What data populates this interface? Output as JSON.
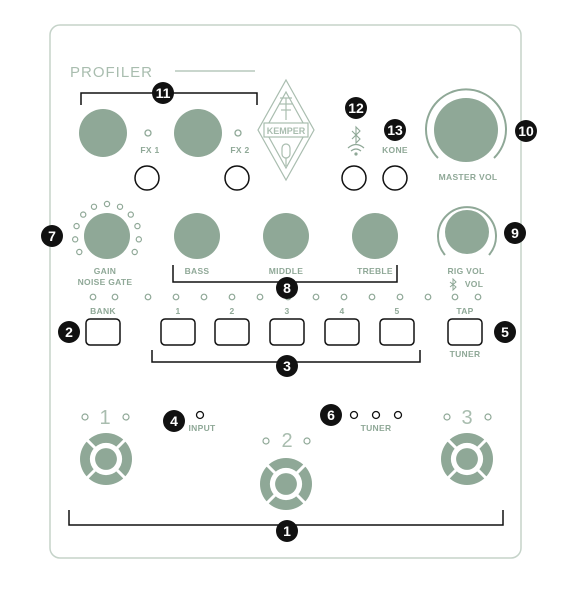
{
  "brand": {
    "title": "PROFILER",
    "logo_text": "KEMPER"
  },
  "labels": {
    "fx1": "FX 1",
    "fx2": "FX 2",
    "kone": "KONE",
    "master_vol": "MASTER VOL",
    "gain": "GAIN",
    "noise_gate": "NOISE GATE",
    "bass": "BASS",
    "middle": "MIDDLE",
    "treble": "TREBLE",
    "rig_vol": "RIG VOL",
    "bt_vol": "VOL",
    "bank": "BANK",
    "tap": "TAP",
    "tuner_switch": "TUNER",
    "input": "INPUT",
    "tuner_leds": "TUNER"
  },
  "preset_buttons": [
    "1",
    "2",
    "3",
    "4",
    "5"
  ],
  "footswitches": [
    "1",
    "2",
    "3"
  ],
  "callouts": {
    "c1": "1",
    "c2": "2",
    "c3": "3",
    "c4": "4",
    "c5": "5",
    "c6": "6",
    "c7": "7",
    "c8": "8",
    "c9": "9",
    "c10": "10",
    "c11": "11",
    "c12": "12",
    "c13": "13"
  },
  "colors": {
    "panel_outline": "#c5d3c9",
    "control": "#8fa897",
    "knob_fill": "#8fa897",
    "callout": "#111111"
  },
  "icons": {
    "bluetooth": "bluetooth-icon",
    "wifi": "wifi-icon",
    "logo": "kemper-logo-icon"
  }
}
